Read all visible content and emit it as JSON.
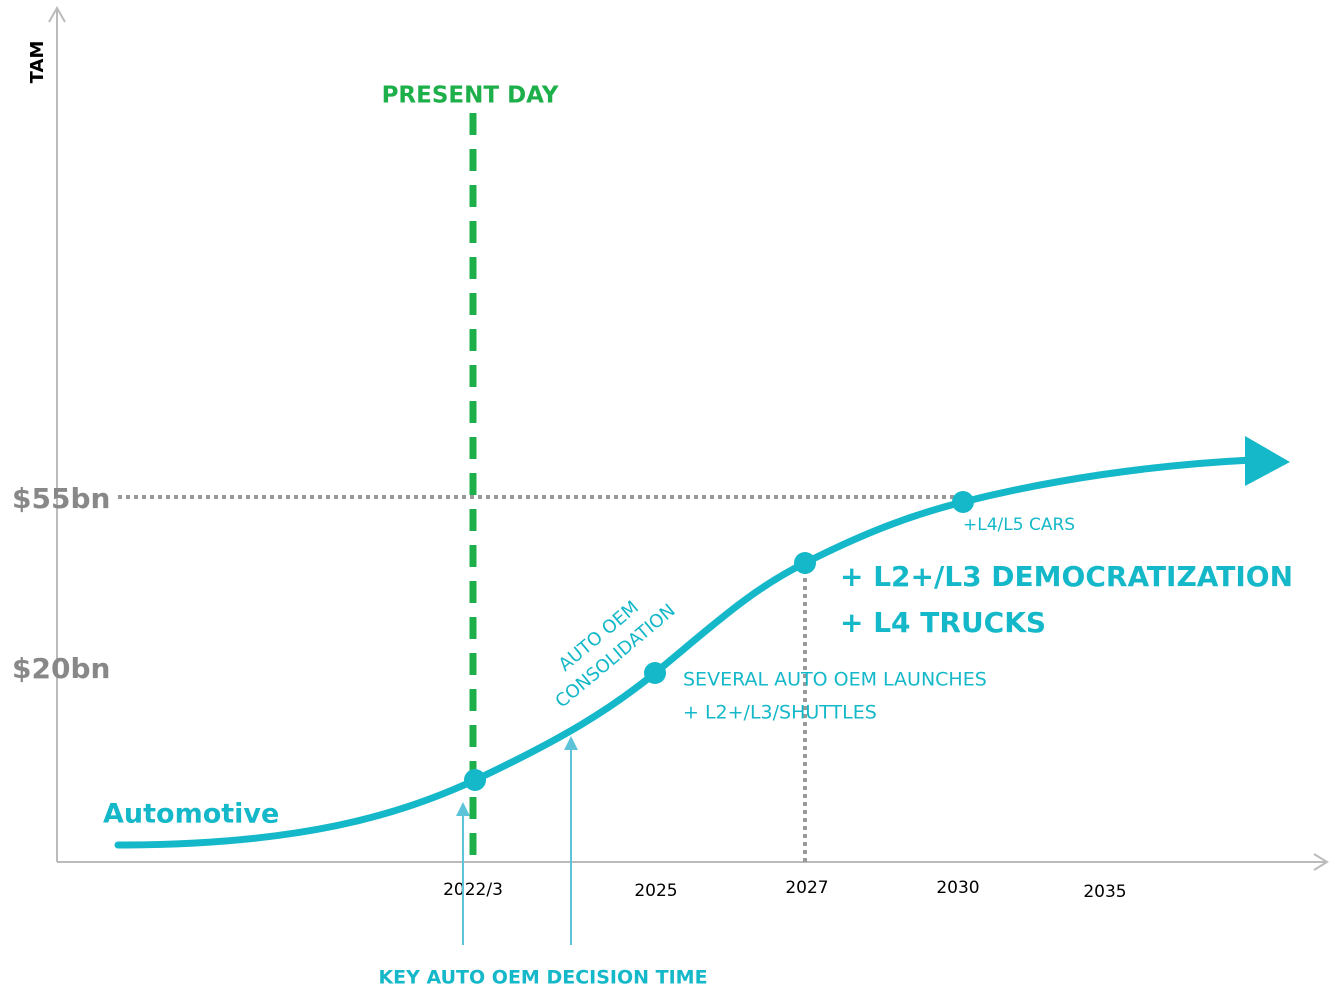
{
  "axis": {
    "y_label": "TAM",
    "y_levels": [
      "$55bn",
      "$20bn"
    ],
    "x_labels": [
      "2022/3",
      "2025",
      "2027",
      "2030",
      "2035"
    ]
  },
  "present_day": "PRESENT DAY",
  "series_label": "Automotive",
  "milestones": {
    "l4l5": "+L4/L5 CARS",
    "democratization": [
      "+ L2+/L3 DEMOCRATIZATION",
      "+ L4 TRUCKS"
    ],
    "launches": [
      "SEVERAL AUTO OEM LAUNCHES",
      "+ L2+/L3/SHUTTLES"
    ],
    "consolidation": [
      "AUTO OEM",
      "CONSOLIDATION"
    ]
  },
  "decision_time": "KEY AUTO OEM DECISION TIME"
}
